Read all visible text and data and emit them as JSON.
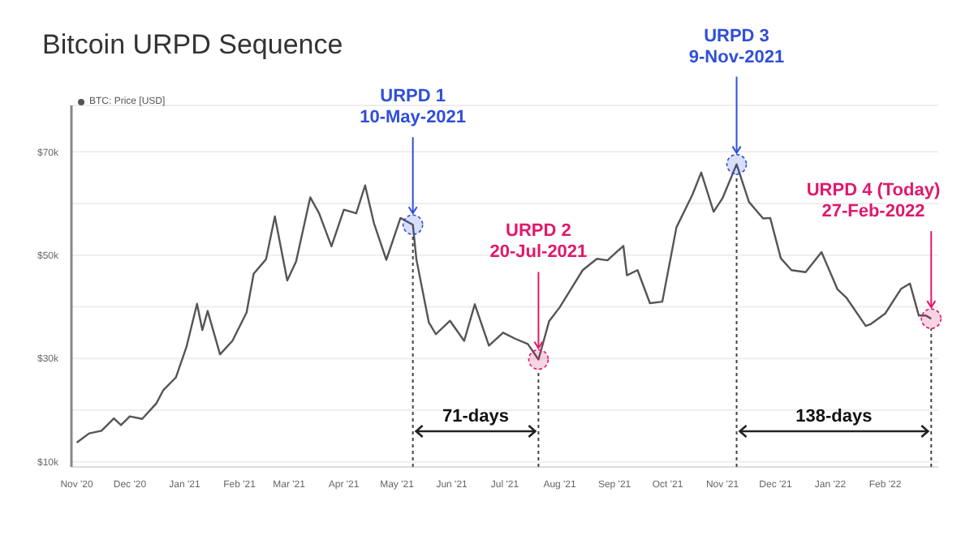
{
  "chart_data": {
    "type": "line",
    "title": "Bitcoin URPD Sequence",
    "x": [
      "2020-11-01",
      "2020-11-08",
      "2020-11-15",
      "2020-11-22",
      "2020-11-26",
      "2020-12-01",
      "2020-12-08",
      "2020-12-16",
      "2020-12-20",
      "2020-12-27",
      "2021-01-02",
      "2021-01-08",
      "2021-01-11",
      "2021-01-14",
      "2021-01-21",
      "2021-01-28",
      "2021-02-05",
      "2021-02-09",
      "2021-02-16",
      "2021-02-21",
      "2021-02-28",
      "2021-03-05",
      "2021-03-13",
      "2021-03-18",
      "2021-03-25",
      "2021-04-01",
      "2021-04-08",
      "2021-04-13",
      "2021-04-18",
      "2021-04-25",
      "2021-05-03",
      "2021-05-10",
      "2021-05-12",
      "2021-05-19",
      "2021-05-23",
      "2021-05-31",
      "2021-06-08",
      "2021-06-14",
      "2021-06-22",
      "2021-06-30",
      "2021-07-07",
      "2021-07-14",
      "2021-07-20",
      "2021-07-26",
      "2021-08-01",
      "2021-08-08",
      "2021-08-14",
      "2021-08-22",
      "2021-08-28",
      "2021-09-06",
      "2021-09-08",
      "2021-09-14",
      "2021-09-21",
      "2021-09-28",
      "2021-10-06",
      "2021-10-15",
      "2021-10-20",
      "2021-10-27",
      "2021-11-01",
      "2021-11-09",
      "2021-11-16",
      "2021-11-24",
      "2021-11-28",
      "2021-12-04",
      "2021-12-10",
      "2021-12-18",
      "2021-12-27",
      "2022-01-05",
      "2022-01-10",
      "2022-01-21",
      "2022-01-24",
      "2022-02-01",
      "2022-02-10",
      "2022-02-15",
      "2022-02-20",
      "2022-02-24",
      "2022-02-27"
    ],
    "series": [
      {
        "name": "BTC: Price [USD]",
        "color": "#555555",
        "values": [
          13700,
          15500,
          16000,
          18400,
          17100,
          18800,
          18300,
          21300,
          23900,
          26300,
          32200,
          40600,
          35500,
          39200,
          30800,
          33400,
          38900,
          46400,
          49200,
          57500,
          45100,
          48800,
          61200,
          58100,
          51700,
          58800,
          58100,
          63500,
          56200,
          49100,
          57200,
          55900,
          49200,
          37000,
          34700,
          37300,
          33400,
          40500,
          32500,
          35000,
          33800,
          32800,
          29800,
          37200,
          39900,
          43800,
          47100,
          49300,
          49000,
          51800,
          46100,
          47100,
          40700,
          41000,
          55400,
          61700,
          66000,
          58400,
          61000,
          67600,
          60300,
          57100,
          57200,
          49400,
          47100,
          46700,
          50600,
          43400,
          41800,
          36300,
          36700,
          38700,
          43500,
          44500,
          38300,
          38300,
          37700
        ]
      }
    ],
    "xlim": [
      "2020-10-29",
      "2022-03-03"
    ],
    "xticks": [
      {
        "value": "2020-11-01",
        "label": "Nov '20"
      },
      {
        "value": "2020-12-01",
        "label": "Dec '20"
      },
      {
        "value": "2021-01-01",
        "label": "Jan '21"
      },
      {
        "value": "2021-02-01",
        "label": "Feb '21"
      },
      {
        "value": "2021-03-01",
        "label": "Mar '21"
      },
      {
        "value": "2021-04-01",
        "label": "Apr '21"
      },
      {
        "value": "2021-05-01",
        "label": "May '21"
      },
      {
        "value": "2021-06-01",
        "label": "Jun '21"
      },
      {
        "value": "2021-07-01",
        "label": "Jul '21"
      },
      {
        "value": "2021-08-01",
        "label": "Aug '21"
      },
      {
        "value": "2021-09-01",
        "label": "Sep '21"
      },
      {
        "value": "2021-10-01",
        "label": "Oct '21"
      },
      {
        "value": "2021-11-01",
        "label": "Nov '21"
      },
      {
        "value": "2021-12-01",
        "label": "Dec '21"
      },
      {
        "value": "2022-01-01",
        "label": "Jan '22"
      },
      {
        "value": "2022-02-01",
        "label": "Feb '22"
      }
    ],
    "ylim": [
      9000,
      79000
    ],
    "yticks": [
      {
        "value": 10000,
        "label": "$10k"
      },
      {
        "value": 20000,
        "label": null
      },
      {
        "value": 30000,
        "label": "$30k"
      },
      {
        "value": 40000,
        "label": null
      },
      {
        "value": 50000,
        "label": "$50k"
      },
      {
        "value": 60000,
        "label": null
      },
      {
        "value": 70000,
        "label": "$70k"
      }
    ],
    "grid": "y",
    "legend": "top left",
    "marker": "none",
    "line_style": "solid",
    "ref_lines": [
      {
        "axis": "x",
        "value": "2021-05-10",
        "color": "#444444",
        "line_style": "dotted"
      },
      {
        "axis": "x",
        "value": "2021-07-20",
        "color": "#444444",
        "line_style": "dotted"
      },
      {
        "axis": "x",
        "value": "2021-11-09",
        "color": "#444444",
        "line_style": "dotted"
      },
      {
        "axis": "x",
        "value": "2022-02-27",
        "color": "#444444",
        "line_style": "dotted"
      }
    ],
    "annotations": [
      {
        "text": "URPD 1\n10-May-2021",
        "x": "2021-05-10",
        "y": 55900
      },
      {
        "text": "URPD 2\n20-Jul-2021",
        "x": "2021-07-20",
        "y": 29800
      },
      {
        "text": "URPD 3\n9-Nov-2021",
        "x": "2021-11-09",
        "y": 67600
      },
      {
        "text": "URPD 4 (Today)\n27-Feb-2022",
        "x": "2022-02-27",
        "y": 37700
      },
      "71-days",
      "138-days"
    ]
  }
}
